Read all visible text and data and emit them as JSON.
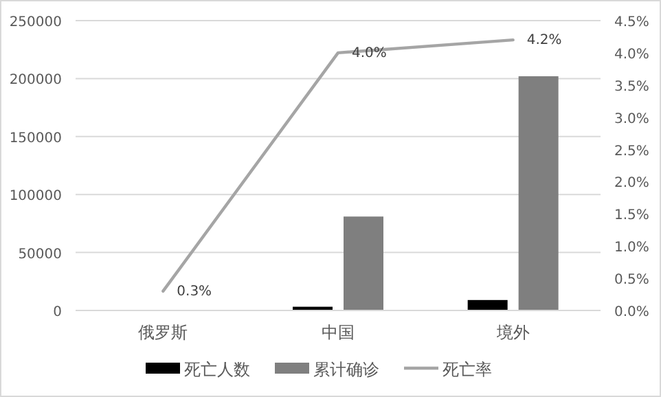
{
  "chart_data": {
    "type": "bar",
    "categories": [
      "俄罗斯",
      "中国",
      "境外"
    ],
    "series": [
      {
        "name": "死亡人数",
        "color": "#000000",
        "values": [
          0,
          3200,
          9000
        ]
      },
      {
        "name": "累计确诊",
        "color": "#7f7f7f",
        "values": [
          0,
          81000,
          202000
        ]
      },
      {
        "name": "死亡率",
        "type": "line",
        "axis": "y2",
        "color": "#a5a5a5",
        "values": [
          0.3,
          4.0,
          4.2
        ],
        "value_labels": [
          "0.3%",
          "4.0%",
          "4.2%"
        ]
      }
    ],
    "ylim": [
      0,
      250000
    ],
    "yticks": [
      0,
      50000,
      100000,
      150000,
      200000,
      250000
    ],
    "y2lim": [
      0,
      4.5
    ],
    "y2ticks": [
      {
        "value": 0,
        "label": "0.0%"
      },
      {
        "value": 0.5,
        "label": "0.5%"
      },
      {
        "value": 1,
        "label": "1.0%"
      },
      {
        "value": 1.5,
        "label": "1.5%"
      },
      {
        "value": 2,
        "label": "2.0%"
      },
      {
        "value": 2.5,
        "label": "2.5%"
      },
      {
        "value": 3,
        "label": "3.0%"
      },
      {
        "value": 3.5,
        "label": "3.5%"
      },
      {
        "value": 4,
        "label": "4.0%"
      },
      {
        "value": 4.5,
        "label": "4.5%"
      }
    ],
    "grid": "y",
    "legend": "bottom",
    "line_style": "solid",
    "marker": "none"
  }
}
